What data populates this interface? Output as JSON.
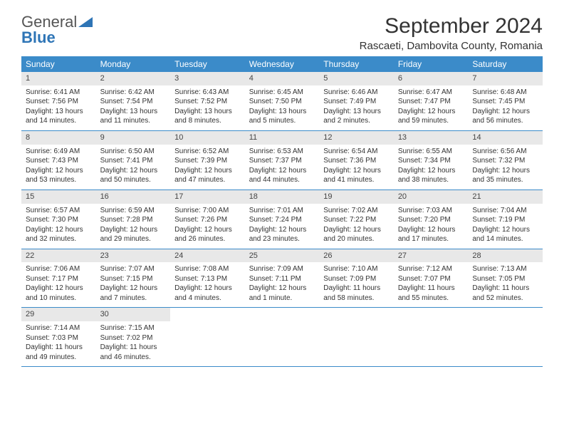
{
  "brand": {
    "part1": "General",
    "part2": "Blue"
  },
  "title": "September 2024",
  "location": "Rascaeti, Dambovita County, Romania",
  "colors": {
    "header_bg": "#3b8bc9",
    "header_text": "#ffffff",
    "daynum_bg": "#e8e8e8",
    "border": "#3b8bc9",
    "brand_gray": "#555555",
    "brand_blue": "#2e75b6"
  },
  "weekdays": [
    "Sunday",
    "Monday",
    "Tuesday",
    "Wednesday",
    "Thursday",
    "Friday",
    "Saturday"
  ],
  "weeks": [
    [
      {
        "n": "1",
        "sr": "Sunrise: 6:41 AM",
        "ss": "Sunset: 7:56 PM",
        "d1": "Daylight: 13 hours",
        "d2": "and 14 minutes."
      },
      {
        "n": "2",
        "sr": "Sunrise: 6:42 AM",
        "ss": "Sunset: 7:54 PM",
        "d1": "Daylight: 13 hours",
        "d2": "and 11 minutes."
      },
      {
        "n": "3",
        "sr": "Sunrise: 6:43 AM",
        "ss": "Sunset: 7:52 PM",
        "d1": "Daylight: 13 hours",
        "d2": "and 8 minutes."
      },
      {
        "n": "4",
        "sr": "Sunrise: 6:45 AM",
        "ss": "Sunset: 7:50 PM",
        "d1": "Daylight: 13 hours",
        "d2": "and 5 minutes."
      },
      {
        "n": "5",
        "sr": "Sunrise: 6:46 AM",
        "ss": "Sunset: 7:49 PM",
        "d1": "Daylight: 13 hours",
        "d2": "and 2 minutes."
      },
      {
        "n": "6",
        "sr": "Sunrise: 6:47 AM",
        "ss": "Sunset: 7:47 PM",
        "d1": "Daylight: 12 hours",
        "d2": "and 59 minutes."
      },
      {
        "n": "7",
        "sr": "Sunrise: 6:48 AM",
        "ss": "Sunset: 7:45 PM",
        "d1": "Daylight: 12 hours",
        "d2": "and 56 minutes."
      }
    ],
    [
      {
        "n": "8",
        "sr": "Sunrise: 6:49 AM",
        "ss": "Sunset: 7:43 PM",
        "d1": "Daylight: 12 hours",
        "d2": "and 53 minutes."
      },
      {
        "n": "9",
        "sr": "Sunrise: 6:50 AM",
        "ss": "Sunset: 7:41 PM",
        "d1": "Daylight: 12 hours",
        "d2": "and 50 minutes."
      },
      {
        "n": "10",
        "sr": "Sunrise: 6:52 AM",
        "ss": "Sunset: 7:39 PM",
        "d1": "Daylight: 12 hours",
        "d2": "and 47 minutes."
      },
      {
        "n": "11",
        "sr": "Sunrise: 6:53 AM",
        "ss": "Sunset: 7:37 PM",
        "d1": "Daylight: 12 hours",
        "d2": "and 44 minutes."
      },
      {
        "n": "12",
        "sr": "Sunrise: 6:54 AM",
        "ss": "Sunset: 7:36 PM",
        "d1": "Daylight: 12 hours",
        "d2": "and 41 minutes."
      },
      {
        "n": "13",
        "sr": "Sunrise: 6:55 AM",
        "ss": "Sunset: 7:34 PM",
        "d1": "Daylight: 12 hours",
        "d2": "and 38 minutes."
      },
      {
        "n": "14",
        "sr": "Sunrise: 6:56 AM",
        "ss": "Sunset: 7:32 PM",
        "d1": "Daylight: 12 hours",
        "d2": "and 35 minutes."
      }
    ],
    [
      {
        "n": "15",
        "sr": "Sunrise: 6:57 AM",
        "ss": "Sunset: 7:30 PM",
        "d1": "Daylight: 12 hours",
        "d2": "and 32 minutes."
      },
      {
        "n": "16",
        "sr": "Sunrise: 6:59 AM",
        "ss": "Sunset: 7:28 PM",
        "d1": "Daylight: 12 hours",
        "d2": "and 29 minutes."
      },
      {
        "n": "17",
        "sr": "Sunrise: 7:00 AM",
        "ss": "Sunset: 7:26 PM",
        "d1": "Daylight: 12 hours",
        "d2": "and 26 minutes."
      },
      {
        "n": "18",
        "sr": "Sunrise: 7:01 AM",
        "ss": "Sunset: 7:24 PM",
        "d1": "Daylight: 12 hours",
        "d2": "and 23 minutes."
      },
      {
        "n": "19",
        "sr": "Sunrise: 7:02 AM",
        "ss": "Sunset: 7:22 PM",
        "d1": "Daylight: 12 hours",
        "d2": "and 20 minutes."
      },
      {
        "n": "20",
        "sr": "Sunrise: 7:03 AM",
        "ss": "Sunset: 7:20 PM",
        "d1": "Daylight: 12 hours",
        "d2": "and 17 minutes."
      },
      {
        "n": "21",
        "sr": "Sunrise: 7:04 AM",
        "ss": "Sunset: 7:19 PM",
        "d1": "Daylight: 12 hours",
        "d2": "and 14 minutes."
      }
    ],
    [
      {
        "n": "22",
        "sr": "Sunrise: 7:06 AM",
        "ss": "Sunset: 7:17 PM",
        "d1": "Daylight: 12 hours",
        "d2": "and 10 minutes."
      },
      {
        "n": "23",
        "sr": "Sunrise: 7:07 AM",
        "ss": "Sunset: 7:15 PM",
        "d1": "Daylight: 12 hours",
        "d2": "and 7 minutes."
      },
      {
        "n": "24",
        "sr": "Sunrise: 7:08 AM",
        "ss": "Sunset: 7:13 PM",
        "d1": "Daylight: 12 hours",
        "d2": "and 4 minutes."
      },
      {
        "n": "25",
        "sr": "Sunrise: 7:09 AM",
        "ss": "Sunset: 7:11 PM",
        "d1": "Daylight: 12 hours",
        "d2": "and 1 minute."
      },
      {
        "n": "26",
        "sr": "Sunrise: 7:10 AM",
        "ss": "Sunset: 7:09 PM",
        "d1": "Daylight: 11 hours",
        "d2": "and 58 minutes."
      },
      {
        "n": "27",
        "sr": "Sunrise: 7:12 AM",
        "ss": "Sunset: 7:07 PM",
        "d1": "Daylight: 11 hours",
        "d2": "and 55 minutes."
      },
      {
        "n": "28",
        "sr": "Sunrise: 7:13 AM",
        "ss": "Sunset: 7:05 PM",
        "d1": "Daylight: 11 hours",
        "d2": "and 52 minutes."
      }
    ],
    [
      {
        "n": "29",
        "sr": "Sunrise: 7:14 AM",
        "ss": "Sunset: 7:03 PM",
        "d1": "Daylight: 11 hours",
        "d2": "and 49 minutes."
      },
      {
        "n": "30",
        "sr": "Sunrise: 7:15 AM",
        "ss": "Sunset: 7:02 PM",
        "d1": "Daylight: 11 hours",
        "d2": "and 46 minutes."
      },
      null,
      null,
      null,
      null,
      null
    ]
  ]
}
